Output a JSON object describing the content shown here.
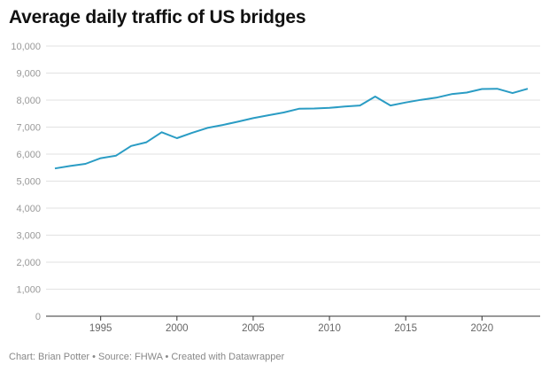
{
  "chart_data": {
    "type": "line",
    "title": "Average daily traffic of US bridges",
    "xlabel": "",
    "ylabel": "",
    "x": [
      1992,
      1993,
      1994,
      1995,
      1996,
      1997,
      1998,
      1999,
      2000,
      2001,
      2002,
      2003,
      2004,
      2005,
      2006,
      2007,
      2008,
      2009,
      2010,
      2011,
      2012,
      2013,
      2014,
      2015,
      2016,
      2017,
      2018,
      2019,
      2020,
      2021,
      2022,
      2023
    ],
    "series": [
      {
        "values": [
          5470,
          5560,
          5640,
          5850,
          5940,
          6300,
          6440,
          6810,
          6590,
          6790,
          6970,
          7080,
          7200,
          7330,
          7440,
          7540,
          7680,
          7690,
          7710,
          7760,
          7800,
          8130,
          7800,
          7910,
          8010,
          8090,
          8220,
          8280,
          8410,
          8420,
          8260,
          8420
        ]
      }
    ],
    "xlim": [
      1992,
      2023
    ],
    "ylim": [
      0,
      10000
    ],
    "x_ticks": [
      "1995",
      "2000",
      "2005",
      "2010",
      "2015",
      "2020"
    ],
    "y_ticks": [
      "0",
      "1,000",
      "2,000",
      "3,000",
      "4,000",
      "5,000",
      "6,000",
      "7,000",
      "8,000",
      "9,000",
      "10,000"
    ],
    "grid": "horizontal",
    "line_color": "#2a9cc4",
    "footer": "Chart: Brian Potter • Source: FHWA • Created with Datawrapper"
  }
}
